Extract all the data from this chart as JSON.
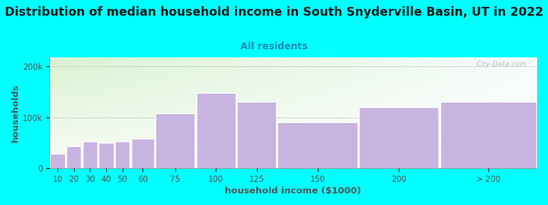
{
  "title": "Distribution of median household income in South Snyderville Basin, UT in 2022",
  "subtitle": "All residents",
  "xlabel": "household income ($1000)",
  "ylabel": "households",
  "background_color": "#00FFFF",
  "bar_color": "#c8b4e0",
  "bar_edge_color": "#ffffff",
  "watermark": "City-Data.com",
  "categories": [
    "10",
    "20",
    "30",
    "40",
    "50",
    "60",
    "75",
    "100",
    "125",
    "150",
    "200",
    "> 200"
  ],
  "values": [
    28000,
    43000,
    52000,
    50000,
    52000,
    58000,
    107000,
    148000,
    130000,
    90000,
    120000,
    130000
  ],
  "bar_widths": [
    10,
    10,
    10,
    10,
    10,
    15,
    25,
    25,
    25,
    50,
    50,
    60
  ],
  "bar_lefts": [
    5,
    15,
    25,
    35,
    45,
    55,
    70,
    95,
    120,
    145,
    195,
    245
  ],
  "yticks": [
    0,
    100000,
    200000
  ],
  "ytick_labels": [
    "0",
    "100k",
    "200k"
  ],
  "ylim": [
    0,
    218000
  ],
  "xlim": [
    5,
    305
  ],
  "title_fontsize": 12.5,
  "subtitle_fontsize": 10,
  "axis_label_fontsize": 9.5,
  "tick_fontsize": 8.5,
  "title_color": "#1a1a1a",
  "subtitle_color": "#2288bb",
  "tick_color": "#555555",
  "grid_color": "#cccccc",
  "gradient_tl": [
    0.85,
    0.95,
    0.82
  ],
  "gradient_tr": [
    0.97,
    0.99,
    0.99
  ],
  "gradient_bl": [
    0.98,
    0.99,
    0.97
  ],
  "gradient_br": [
    1.0,
    1.0,
    1.0
  ]
}
